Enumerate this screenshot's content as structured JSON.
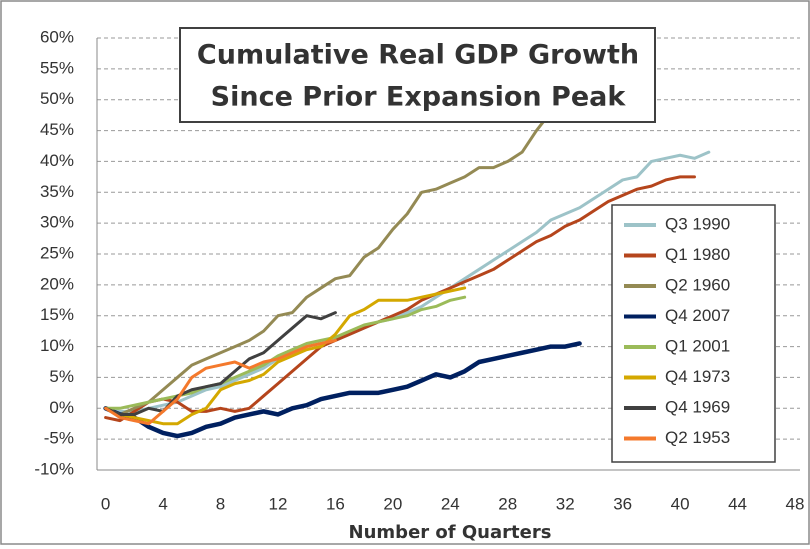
{
  "chart_data": {
    "type": "line",
    "title": "Cumulative Real GDP Growth",
    "subtitle": "Since Prior Expansion Peak",
    "x_label": "Number of Quarters",
    "x": [
      0,
      1,
      2,
      3,
      4,
      5,
      6,
      7,
      8,
      9,
      10,
      11,
      12,
      13,
      14,
      15,
      16,
      17,
      18,
      19,
      20,
      21,
      22,
      23,
      24,
      25,
      26,
      27,
      28,
      29,
      30,
      31,
      32,
      33,
      34,
      35,
      36,
      37,
      38,
      39,
      40,
      41,
      42
    ],
    "xlim": [
      -0.6,
      48
    ],
    "xticks": [
      0,
      4,
      8,
      12,
      16,
      20,
      24,
      28,
      32,
      36,
      40,
      44,
      48
    ],
    "ylim": [
      -10,
      60
    ],
    "yticks": [
      {
        "value": -10,
        "label": "-10%"
      },
      {
        "value": -5,
        "label": "-5%"
      },
      {
        "value": 0,
        "label": "0%"
      },
      {
        "value": 5,
        "label": "5%"
      },
      {
        "value": 10,
        "label": "10%"
      },
      {
        "value": 15,
        "label": "15%"
      },
      {
        "value": 20,
        "label": "20%"
      },
      {
        "value": 25,
        "label": "25%"
      },
      {
        "value": 30,
        "label": "30%"
      },
      {
        "value": 35,
        "label": "35%"
      },
      {
        "value": 40,
        "label": "40%"
      },
      {
        "value": 45,
        "label": "45%"
      },
      {
        "value": 50,
        "label": "50%"
      },
      {
        "value": 55,
        "label": "55%"
      },
      {
        "value": 60,
        "label": "60%"
      }
    ],
    "grid": true,
    "legend": "right",
    "series": [
      {
        "name": "Q3 1990",
        "color": "#9dc3c8",
        "values": [
          0,
          -0.5,
          -0.5,
          0,
          0.5,
          1,
          2,
          3,
          3.5,
          4.5,
          5.5,
          6.5,
          8,
          9,
          10,
          10.5,
          11,
          12,
          13,
          14,
          14.5,
          15.5,
          16.5,
          18,
          19.5,
          21,
          22.5,
          24,
          25.5,
          27,
          28.5,
          30.5,
          31.5,
          32.5,
          34,
          35.5,
          37,
          37.5,
          40,
          40.5,
          41,
          40.5,
          41.5
        ]
      },
      {
        "name": "Q1 1980",
        "color": "#b5451c",
        "values": [
          -1.5,
          -2,
          -0.5,
          1,
          1.5,
          1,
          -0.5,
          -0.5,
          0,
          -0.5,
          0,
          2,
          4,
          6,
          8,
          10,
          11,
          12,
          13,
          14,
          15,
          16,
          17.5,
          18.5,
          19.5,
          20.5,
          21.5,
          22.5,
          24,
          25.5,
          27,
          28,
          29.5,
          30.5,
          32,
          33.5,
          34.5,
          35.5,
          36,
          37,
          37.5,
          37.5,
          null
        ]
      },
      {
        "name": "Q2 1960",
        "color": "#948a54",
        "values": [
          0,
          -1,
          0,
          1,
          3,
          5,
          7,
          8,
          9,
          10,
          11,
          12.5,
          15,
          15.5,
          18,
          19.5,
          21,
          21.5,
          24.5,
          26,
          29,
          31.5,
          35,
          35.5,
          36.5,
          37.5,
          39,
          39,
          40,
          41.5,
          45,
          48,
          51,
          null,
          null,
          null,
          null,
          null,
          null,
          null,
          null,
          null,
          null
        ]
      },
      {
        "name": "Q4 2007",
        "color": "#002060",
        "values": [
          0,
          -1,
          -1.5,
          -3,
          -4,
          -4.5,
          -4,
          -3,
          -2.5,
          -1.5,
          -1,
          -0.5,
          -1,
          0,
          0.5,
          1.5,
          2,
          2.5,
          2.5,
          2.5,
          3,
          3.5,
          4.5,
          5.5,
          5,
          6,
          7.5,
          8,
          8.5,
          9,
          9.5,
          10,
          10,
          10.5,
          null,
          null,
          null,
          null,
          null,
          null,
          null,
          null,
          null
        ]
      },
      {
        "name": "Q1 2001",
        "color": "#9bbb59",
        "values": [
          0,
          0,
          0.5,
          1,
          1.5,
          2,
          2.5,
          3.5,
          4,
          5,
          6,
          7,
          8.5,
          9.5,
          10.5,
          11,
          11.5,
          12.5,
          13.5,
          14,
          14.5,
          15,
          16,
          16.5,
          17.5,
          18,
          null,
          null,
          null,
          null,
          null,
          null,
          null,
          null,
          null,
          null,
          null,
          null,
          null,
          null,
          null,
          null,
          null
        ]
      },
      {
        "name": "Q4 1973",
        "color": "#d4a800",
        "values": [
          0,
          -1,
          -1.5,
          -2,
          -2.5,
          -2.5,
          -1,
          0,
          3,
          4,
          4.5,
          5.5,
          7.5,
          8.5,
          9.5,
          10,
          12,
          15,
          16,
          17.5,
          17.5,
          17.5,
          18,
          18.5,
          19,
          19.5,
          null,
          null,
          null,
          null,
          null,
          null,
          null,
          null,
          null,
          null,
          null,
          null,
          null,
          null,
          null,
          null,
          null
        ]
      },
      {
        "name": "Q4 1969",
        "color": "#404040",
        "values": [
          0,
          -1,
          -1,
          0,
          -0.5,
          2,
          3,
          3.5,
          4,
          6,
          8,
          9,
          11,
          13,
          15,
          14.5,
          15.5,
          null,
          null,
          null,
          null,
          null,
          null,
          null,
          null,
          null,
          null,
          null,
          null,
          null,
          null,
          null,
          null,
          null,
          null,
          null,
          null,
          null,
          null,
          null,
          null,
          null,
          null
        ]
      },
      {
        "name": "Q2 1953",
        "color": "#f4792c",
        "values": [
          0,
          -1.5,
          -2,
          -2.5,
          -0.5,
          1.5,
          5,
          6.5,
          7,
          7.5,
          6.5,
          7.5,
          8,
          9,
          10,
          10.5,
          11,
          null,
          null,
          null,
          null,
          null,
          null,
          null,
          null,
          null,
          null,
          null,
          null,
          null,
          null,
          null,
          null,
          null,
          null,
          null,
          null,
          null,
          null,
          null,
          null,
          null,
          null
        ]
      }
    ]
  }
}
